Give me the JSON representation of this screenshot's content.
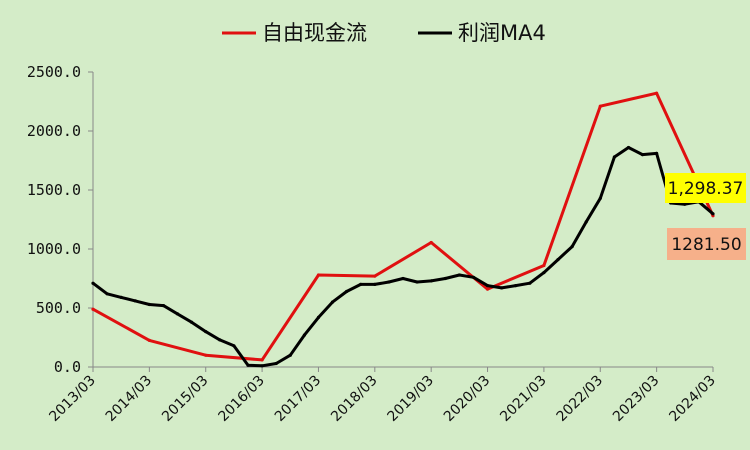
{
  "chart_data": {
    "type": "line",
    "title": "",
    "xlabel": "",
    "ylabel": "",
    "ylim": [
      0,
      2500
    ],
    "xlim": [
      "2013/03",
      "2024/03"
    ],
    "yticks": [
      "0.0",
      "500.0",
      "1000.0",
      "1500.0",
      "2000.0",
      "2500.0"
    ],
    "xticks": [
      "2013/03",
      "2014/03",
      "2015/03",
      "2016/03",
      "2017/03",
      "2018/03",
      "2019/03",
      "2020/03",
      "2021/03",
      "2022/03",
      "2023/03",
      "2024/03"
    ],
    "grid": false,
    "legend": "top",
    "series": [
      {
        "name": "自由现金流",
        "color": "#e01010",
        "points": [
          [
            "2013/03",
            490
          ],
          [
            "2014/03",
            225
          ],
          [
            "2015/03",
            100
          ],
          [
            "2016/03",
            60
          ],
          [
            "2017/03",
            780
          ],
          [
            "2018/03",
            770
          ],
          [
            "2019/03",
            1055
          ],
          [
            "2020/03",
            660
          ],
          [
            "2021/03",
            860
          ],
          [
            "2022/03",
            2210
          ],
          [
            "2023/03",
            2320
          ],
          [
            "2024/03",
            1281.5
          ]
        ]
      },
      {
        "name": "利润MA4",
        "color": "#000000",
        "points": [
          [
            "2013/03",
            710
          ],
          [
            "2013/06",
            620
          ],
          [
            "2013/09",
            590
          ],
          [
            "2013/12",
            560
          ],
          [
            "2014/03",
            530
          ],
          [
            "2014/06",
            520
          ],
          [
            "2014/09",
            450
          ],
          [
            "2014/12",
            380
          ],
          [
            "2015/03",
            300
          ],
          [
            "2015/06",
            230
          ],
          [
            "2015/09",
            180
          ],
          [
            "2015/12",
            15
          ],
          [
            "2016/03",
            10
          ],
          [
            "2016/06",
            30
          ],
          [
            "2016/09",
            100
          ],
          [
            "2016/12",
            270
          ],
          [
            "2017/03",
            420
          ],
          [
            "2017/06",
            550
          ],
          [
            "2017/09",
            640
          ],
          [
            "2017/12",
            700
          ],
          [
            "2018/03",
            700
          ],
          [
            "2018/06",
            720
          ],
          [
            "2018/09",
            750
          ],
          [
            "2018/12",
            720
          ],
          [
            "2019/03",
            730
          ],
          [
            "2019/06",
            750
          ],
          [
            "2019/09",
            780
          ],
          [
            "2019/12",
            760
          ],
          [
            "2020/03",
            690
          ],
          [
            "2020/06",
            670
          ],
          [
            "2020/09",
            690
          ],
          [
            "2020/12",
            710
          ],
          [
            "2021/03",
            800
          ],
          [
            "2021/06",
            910
          ],
          [
            "2021/09",
            1020
          ],
          [
            "2021/12",
            1230
          ],
          [
            "2022/03",
            1430
          ],
          [
            "2022/06",
            1780
          ],
          [
            "2022/09",
            1860
          ],
          [
            "2022/12",
            1800
          ],
          [
            "2023/03",
            1810
          ],
          [
            "2023/06",
            1390
          ],
          [
            "2023/09",
            1380
          ],
          [
            "2023/12",
            1400
          ],
          [
            "2024/03",
            1298.37
          ]
        ]
      }
    ],
    "annotations": [
      {
        "text": "1,298.37",
        "series": "利润MA4",
        "bg": "#ffff00"
      },
      {
        "text": "1281.50",
        "series": "自由现金流",
        "bg": "#f6b08a"
      }
    ]
  }
}
